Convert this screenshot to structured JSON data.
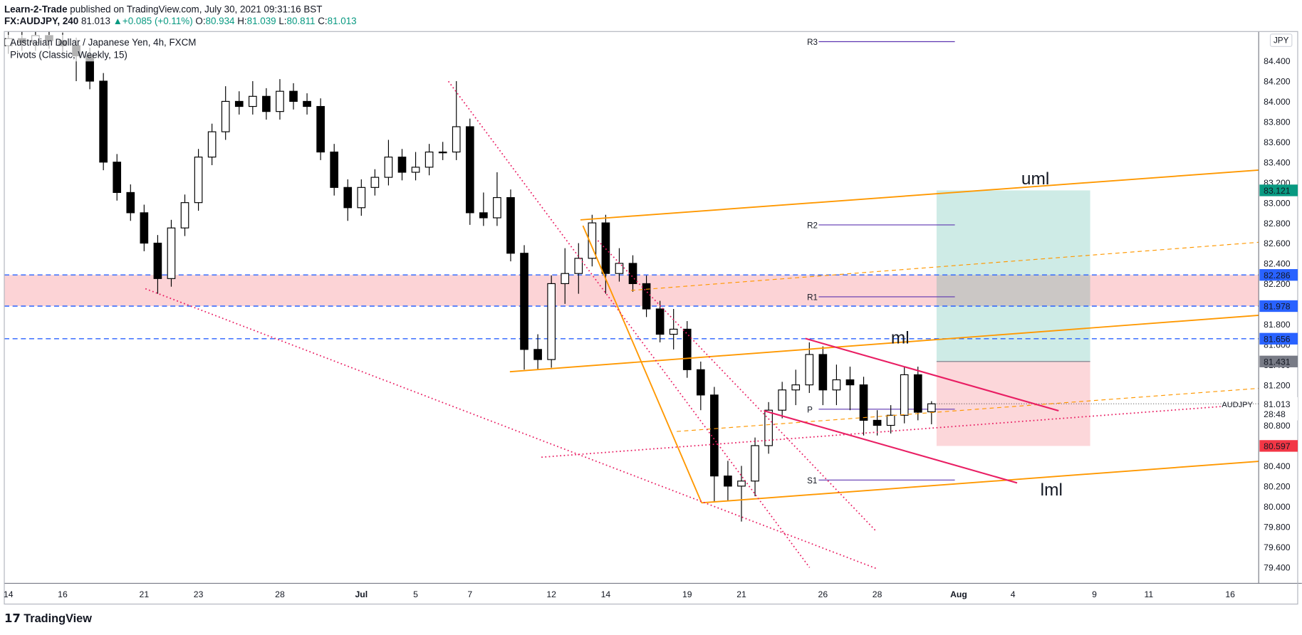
{
  "header": {
    "publisher": "Learn-2-Trade",
    "published": "published on TradingView.com, July 30, 2021 09:31:16 BST",
    "symbol": "FX:AUDJPY, 240",
    "change": "+0.085 (+0.11%)"
  },
  "chart_data": {
    "type": "candlestick",
    "title": "Australian Dollar / Japanese Yen, 4h, FXCM",
    "indicator": "Pivots (Classic, Weekly, 15)",
    "ohlc_labels": [
      "O:",
      "H:",
      "L:",
      "C:"
    ],
    "x": [
      0,
      0.5,
      1,
      1.5,
      2,
      2.5,
      3,
      3.5,
      4,
      4.5,
      5,
      5.5,
      6,
      6.5,
      7,
      7.5,
      8,
      8.5,
      9,
      9.5,
      10,
      10.5,
      11,
      11.5,
      12,
      12.5,
      13,
      13.5,
      14,
      14.5,
      15,
      15.5,
      16,
      16.5,
      17,
      17.5,
      18,
      18.5,
      19,
      19.5,
      20,
      20.5,
      21,
      21.5,
      22,
      22.5,
      23,
      23.5,
      24,
      24.5,
      25,
      25.5,
      26,
      26.5,
      27,
      27.5,
      28,
      28.5,
      29,
      29.5,
      30,
      30.5,
      31,
      31.5,
      32,
      32.5,
      33,
      33.5,
      34
    ],
    "open": [
      84.55,
      84.62,
      84.58,
      84.65,
      84.6,
      84.55,
      84.45,
      84.2,
      83.4,
      83.1,
      82.9,
      82.6,
      82.25,
      82.75,
      83.0,
      83.45,
      83.7,
      84.0,
      83.95,
      84.05,
      83.9,
      84.1,
      84.0,
      83.95,
      83.5,
      83.15,
      82.95,
      83.15,
      83.25,
      83.45,
      83.3,
      83.35,
      83.5,
      83.5,
      83.75,
      82.9,
      82.85,
      83.05,
      82.5,
      81.55,
      81.45,
      82.2,
      82.3,
      82.45,
      82.8,
      82.3,
      82.4,
      82.2,
      81.95,
      81.7,
      81.75,
      81.35,
      81.1,
      80.3,
      80.2,
      80.25,
      80.6,
      80.95,
      81.15,
      81.2,
      81.5,
      81.15,
      81.25,
      81.2,
      80.85,
      80.8,
      80.9,
      81.3,
      80.934
    ],
    "high": [
      84.7,
      84.7,
      84.73,
      84.73,
      84.68,
      84.63,
      84.53,
      84.28,
      83.48,
      83.18,
      82.98,
      82.68,
      82.83,
      83.08,
      83.53,
      83.78,
      84.15,
      84.1,
      84.2,
      84.13,
      84.22,
      84.18,
      84.08,
      84.03,
      83.58,
      83.23,
      83.23,
      83.33,
      83.62,
      83.53,
      83.5,
      83.58,
      83.6,
      84.2,
      83.83,
      83.1,
      83.3,
      83.13,
      82.58,
      81.7,
      82.28,
      82.55,
      82.6,
      82.88,
      82.88,
      82.55,
      82.48,
      82.28,
      82.03,
      81.95,
      81.83,
      81.43,
      81.18,
      80.45,
      80.4,
      80.68,
      81.03,
      81.23,
      81.35,
      81.62,
      81.58,
      81.4,
      81.38,
      81.28,
      80.95,
      81.0,
      81.38,
      81.38,
      81.039
    ],
    "low": [
      84.47,
      84.5,
      84.5,
      84.52,
      84.47,
      84.2,
      84.12,
      83.32,
      83.02,
      82.82,
      82.52,
      82.1,
      82.17,
      82.67,
      82.92,
      83.37,
      83.62,
      83.87,
      83.87,
      83.82,
      83.82,
      83.92,
      83.87,
      83.42,
      83.07,
      82.82,
      82.87,
      83.07,
      83.17,
      83.22,
      83.22,
      83.27,
      83.42,
      83.42,
      82.78,
      82.77,
      82.77,
      82.42,
      81.35,
      81.35,
      81.37,
      82.0,
      82.1,
      82.37,
      82.1,
      82.22,
      82.12,
      81.87,
      81.62,
      81.55,
      81.27,
      80.95,
      80.05,
      80.05,
      79.85,
      80.1,
      80.52,
      80.87,
      81.0,
      81.12,
      81.0,
      81.0,
      80.95,
      80.7,
      80.7,
      80.72,
      80.82,
      80.85,
      80.811
    ],
    "close": [
      84.62,
      84.58,
      84.65,
      84.6,
      84.55,
      84.45,
      84.2,
      83.4,
      83.1,
      82.9,
      82.6,
      82.25,
      82.75,
      83.0,
      83.45,
      83.7,
      84.0,
      83.95,
      84.05,
      83.9,
      84.1,
      84.0,
      83.95,
      83.5,
      83.15,
      82.95,
      83.15,
      83.25,
      83.45,
      83.3,
      83.35,
      83.5,
      83.5,
      83.75,
      82.9,
      82.85,
      83.05,
      82.5,
      81.55,
      81.45,
      82.2,
      82.3,
      82.45,
      82.8,
      82.3,
      82.4,
      82.2,
      81.95,
      81.7,
      81.75,
      81.35,
      81.1,
      80.3,
      80.2,
      80.25,
      80.6,
      80.95,
      81.15,
      81.2,
      81.5,
      81.15,
      81.25,
      81.2,
      80.85,
      80.8,
      80.9,
      81.3,
      80.93,
      81.013
    ],
    "up_color": "#ffffff",
    "down_color": "#000000",
    "xlim": [
      -0.15,
      46.05
    ],
    "xticks": [
      {
        "value": 0,
        "label": "14"
      },
      {
        "value": 2,
        "label": "16"
      },
      {
        "value": 5,
        "label": "21"
      },
      {
        "value": 7,
        "label": "23"
      },
      {
        "value": 10,
        "label": "28"
      },
      {
        "value": 13,
        "label": "Jul"
      },
      {
        "value": 15,
        "label": "5"
      },
      {
        "value": 17,
        "label": "7"
      },
      {
        "value": 20,
        "label": "12"
      },
      {
        "value": 22,
        "label": "14"
      },
      {
        "value": 25,
        "label": "19"
      },
      {
        "value": 27,
        "label": "21"
      },
      {
        "value": 30,
        "label": "26"
      },
      {
        "value": 32,
        "label": "28"
      },
      {
        "value": 35,
        "label": "Aug"
      },
      {
        "value": 37,
        "label": "4"
      },
      {
        "value": 40,
        "label": "9"
      },
      {
        "value": 42,
        "label": "11"
      },
      {
        "value": 45,
        "label": "16"
      }
    ],
    "ylim": [
      79.24,
      84.69
    ],
    "yticks": [
      {
        "value": 79.4,
        "label": "79.400"
      },
      {
        "value": 79.6,
        "label": "79.600"
      },
      {
        "value": 79.8,
        "label": "79.800"
      },
      {
        "value": 80.0,
        "label": "80.000"
      },
      {
        "value": 80.2,
        "label": "80.200"
      },
      {
        "value": 80.4,
        "label": "80.400"
      },
      {
        "value": 80.6,
        "label": "80.600"
      },
      {
        "value": 80.8,
        "label": "80.800"
      },
      {
        "value": 81.0,
        "label": "81.000"
      },
      {
        "value": 81.2,
        "label": "81.200"
      },
      {
        "value": 81.4,
        "label": "81.400"
      },
      {
        "value": 81.6,
        "label": "81.600"
      },
      {
        "value": 81.8,
        "label": "81.800"
      },
      {
        "value": 82.0,
        "label": "82.000"
      },
      {
        "value": 82.2,
        "label": "82.200"
      },
      {
        "value": 82.4,
        "label": "82.400"
      },
      {
        "value": 82.6,
        "label": "82.600"
      },
      {
        "value": 82.8,
        "label": "82.800"
      },
      {
        "value": 83.0,
        "label": "83.000"
      },
      {
        "value": 83.2,
        "label": "83.200"
      },
      {
        "value": 83.4,
        "label": "83.400"
      },
      {
        "value": 83.6,
        "label": "83.600"
      },
      {
        "value": 83.8,
        "label": "83.800"
      },
      {
        "value": 84.0,
        "label": "84.000"
      },
      {
        "value": 84.2,
        "label": "84.200"
      },
      {
        "value": 84.4,
        "label": "84.400"
      }
    ],
    "grid": false,
    "currency": "JPY",
    "symbol_short": "AUDJPY",
    "countdown": "28:48",
    "levels": {
      "values": [
        83.121,
        82.286,
        81.978,
        81.656,
        81.431,
        80.597
      ],
      "colors": [
        "#089981",
        "#2962ff",
        "#2962ff",
        "#2962ff",
        "#787b86",
        "#f23645"
      ],
      "dashed": [
        false,
        true,
        true,
        true,
        false,
        false
      ]
    },
    "pivots": {
      "names": [
        "R3",
        "R2",
        "R1",
        "P",
        "S1"
      ],
      "values": [
        84.59,
        82.78,
        82.07,
        80.96,
        80.26
      ],
      "color": "#5e35b1"
    },
    "annotations": [
      "uml",
      "ml",
      "lml"
    ],
    "footer": "TradingView"
  }
}
